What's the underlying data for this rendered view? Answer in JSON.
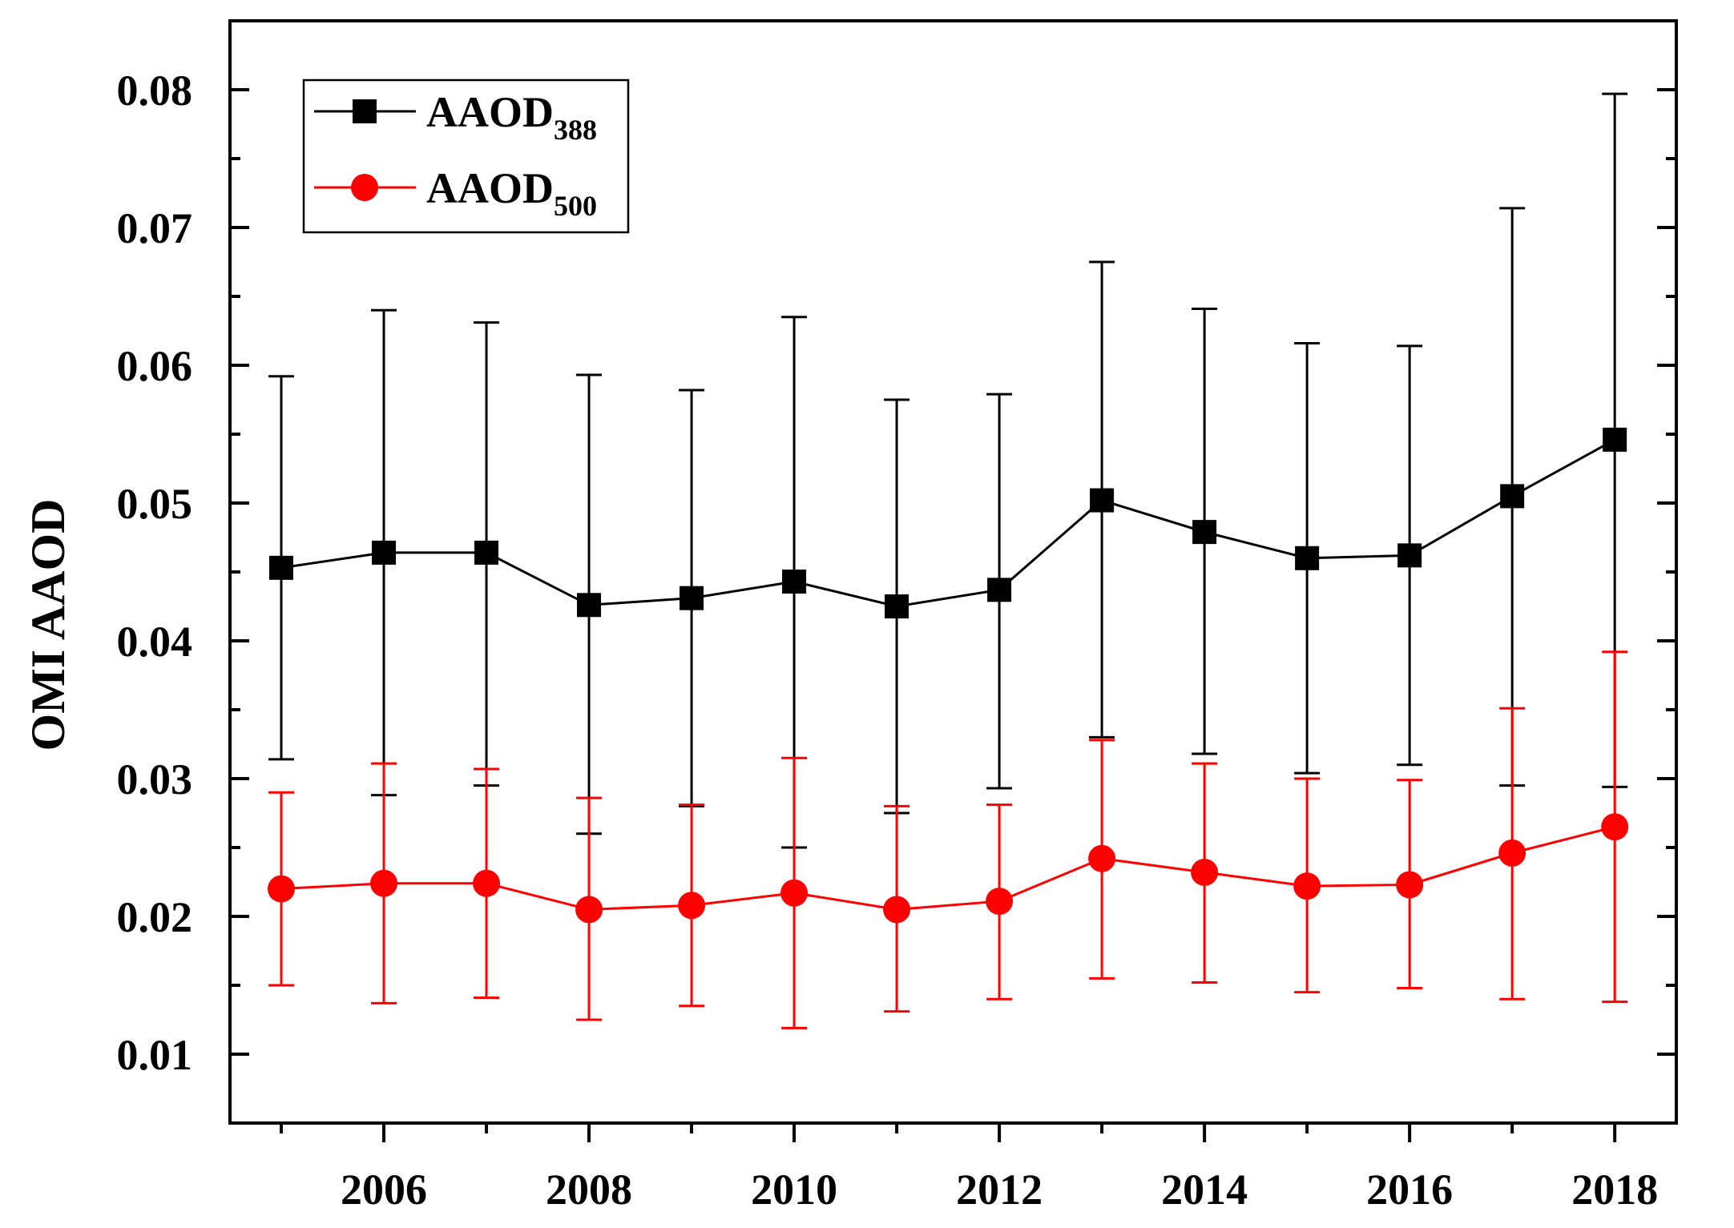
{
  "chart_data": {
    "type": "line",
    "title": "",
    "xlabel": "",
    "ylabel": "OMI AAOD",
    "x": [
      2005,
      2006,
      2007,
      2008,
      2009,
      2010,
      2011,
      2012,
      2013,
      2014,
      2015,
      2016,
      2017,
      2018
    ],
    "xlim": [
      2004.5,
      2018.6
    ],
    "ylim": [
      0.005,
      0.085
    ],
    "xticks": [
      2006,
      2008,
      2010,
      2012,
      2014,
      2016,
      2018
    ],
    "xtick_labels": [
      "2006",
      "2008",
      "2010",
      "2012",
      "2014",
      "2016",
      "2018"
    ],
    "yticks": [
      0.01,
      0.02,
      0.03,
      0.04,
      0.05,
      0.06,
      0.07,
      0.08
    ],
    "ytick_labels": [
      "0.01",
      "0.02",
      "0.03",
      "0.04",
      "0.05",
      "0.06",
      "0.07",
      "0.08"
    ],
    "grid": false,
    "legend_position": "top-left",
    "series": [
      {
        "name": "AAOD388",
        "label_main": "AAOD",
        "label_sub": "388",
        "color": "#000000",
        "marker": "square",
        "values": [
          0.0453,
          0.0464,
          0.0464,
          0.0426,
          0.0431,
          0.0443,
          0.0425,
          0.0437,
          0.0502,
          0.0479,
          0.046,
          0.0462,
          0.0505,
          0.0546
        ],
        "err_upper": [
          0.0592,
          0.064,
          0.0631,
          0.0593,
          0.0582,
          0.0635,
          0.0575,
          0.0579,
          0.0675,
          0.0641,
          0.0616,
          0.0614,
          0.0714,
          0.0797
        ],
        "err_lower": [
          0.0314,
          0.0288,
          0.0295,
          0.026,
          0.028,
          0.025,
          0.0275,
          0.0293,
          0.033,
          0.0318,
          0.0304,
          0.031,
          0.0295,
          0.0294
        ]
      },
      {
        "name": "AAOD500",
        "label_main": "AAOD",
        "label_sub": "500",
        "color": "#ff0000",
        "marker": "circle",
        "values": [
          0.022,
          0.0224,
          0.0224,
          0.0205,
          0.0208,
          0.0217,
          0.0205,
          0.0211,
          0.0242,
          0.0232,
          0.0222,
          0.0223,
          0.0246,
          0.0265
        ],
        "err_upper": [
          0.029,
          0.0311,
          0.0307,
          0.0286,
          0.0281,
          0.0315,
          0.028,
          0.0281,
          0.0328,
          0.0311,
          0.03,
          0.0299,
          0.0351,
          0.0392
        ],
        "err_lower": [
          0.015,
          0.0137,
          0.0141,
          0.0125,
          0.0135,
          0.0119,
          0.0131,
          0.014,
          0.0155,
          0.0152,
          0.0145,
          0.0148,
          0.014,
          0.0138
        ]
      }
    ]
  }
}
